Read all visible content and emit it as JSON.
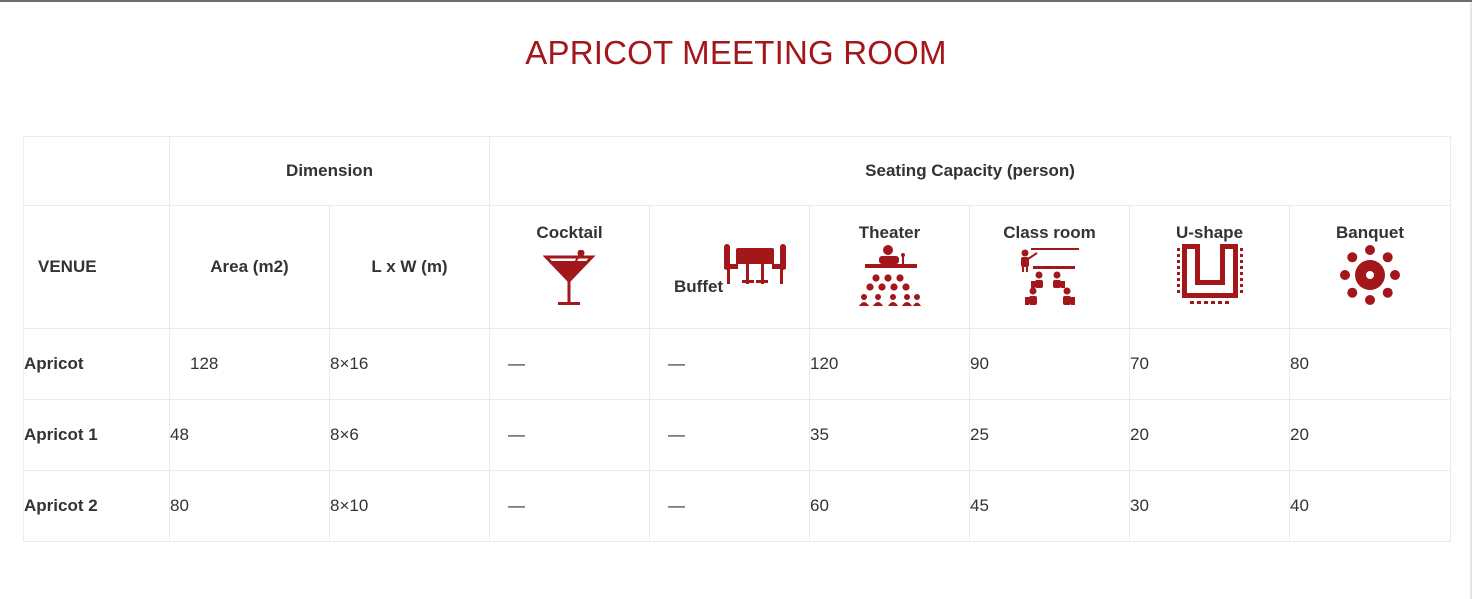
{
  "page": {
    "title": "APRICOT MEETING ROOM"
  },
  "colors": {
    "accent": "#a3161a",
    "text": "#333333",
    "border": "#ececec"
  },
  "table": {
    "group_headers": {
      "dimension": "Dimension",
      "seating": "Seating Capacity (person)"
    },
    "columns": {
      "venue": "VENUE",
      "area": "Area (m2)",
      "lxw": "L x W (m)",
      "cocktail": {
        "label": "Cocktail",
        "icon": "cocktail-glass-icon"
      },
      "buffet": {
        "label": "Buffet",
        "icon": "buffet-table-icon"
      },
      "theater": {
        "label": "Theater",
        "icon": "theater-seating-icon"
      },
      "classroom": {
        "label": "Class room",
        "icon": "classroom-seating-icon"
      },
      "ushape": {
        "label": "U-shape",
        "icon": "u-shape-seating-icon"
      },
      "banquet": {
        "label": "Banquet",
        "icon": "banquet-round-table-icon"
      }
    },
    "rows": [
      {
        "venue": "Apricot",
        "area": "128",
        "lxw": "8×16",
        "cocktail": "—",
        "buffet": "—",
        "theater": "120",
        "classroom": "90",
        "ushape": "70",
        "banquet": "80"
      },
      {
        "venue": "Apricot 1",
        "area": "48",
        "lxw": "8×6",
        "cocktail": "—",
        "buffet": "—",
        "theater": "35",
        "classroom": "25",
        "ushape": "20",
        "banquet": "20"
      },
      {
        "venue": "Apricot 2",
        "area": "80",
        "lxw": "8×10",
        "cocktail": "—",
        "buffet": "—",
        "theater": "60",
        "classroom": "45",
        "ushape": "30",
        "banquet": "40"
      }
    ]
  }
}
